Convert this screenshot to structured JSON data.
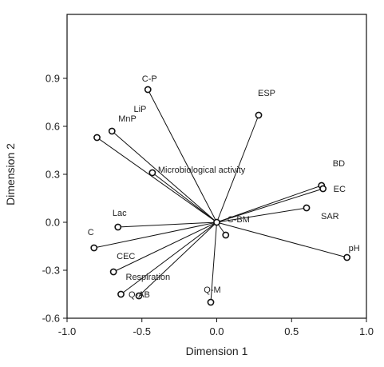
{
  "chart_data": {
    "type": "scatter",
    "title": "",
    "xlabel": "Dimension 1",
    "ylabel": "Dimension 2",
    "xlim": [
      -1.0,
      1.0
    ],
    "ylim": [
      -0.6,
      1.3
    ],
    "xticks": [
      -1.0,
      -0.5,
      0.0,
      0.5,
      1.0
    ],
    "xtick_labels": [
      "-1.0",
      "-0.5",
      "0.0",
      "0.5",
      "1.0"
    ],
    "yticks": [
      -0.6,
      -0.3,
      0.0,
      0.3,
      0.6,
      0.9
    ],
    "ytick_labels": [
      "-0.6",
      "-0.3",
      "0.0",
      "0.3",
      "0.6",
      "0.9"
    ],
    "grid": false,
    "legend": "none",
    "origin": [
      0.0,
      0.0
    ],
    "vectors": [
      {
        "label": "C-P",
        "x": -0.46,
        "y": 0.83,
        "anchor": "above"
      },
      {
        "label": "LiP",
        "x": -0.8,
        "y": 0.53,
        "anchor": "above-right"
      },
      {
        "label": "MnP",
        "x": -0.7,
        "y": 0.57,
        "anchor": "above-right"
      },
      {
        "label": "ESP",
        "x": 0.28,
        "y": 0.67,
        "anchor": "above"
      },
      {
        "label": "Microbiological activity",
        "x": -0.43,
        "y": 0.31,
        "anchor": "right"
      },
      {
        "label": "BD",
        "x": 0.7,
        "y": 0.23,
        "anchor": "above-right"
      },
      {
        "label": "EC",
        "x": 0.71,
        "y": 0.21,
        "anchor": "right"
      },
      {
        "label": "SAR",
        "x": 0.6,
        "y": 0.09,
        "anchor": "right-below"
      },
      {
        "label": "pH",
        "x": 0.87,
        "y": -0.22,
        "anchor": "above-right"
      },
      {
        "label": "Lac",
        "x": -0.66,
        "y": -0.03,
        "anchor": "above"
      },
      {
        "label": "C",
        "x": -0.82,
        "y": -0.16,
        "anchor": "above-left"
      },
      {
        "label": "CEC",
        "x": -0.69,
        "y": -0.31,
        "anchor": "above-right"
      },
      {
        "label": "Respiration",
        "x": -0.64,
        "y": -0.45,
        "anchor": "above-right"
      },
      {
        "label": "Q-AB",
        "x": -0.52,
        "y": -0.46,
        "anchor": "right"
      },
      {
        "label": "C-BM",
        "x": 0.06,
        "y": -0.08,
        "anchor": "above-right"
      },
      {
        "label": "Q-M",
        "x": -0.04,
        "y": -0.5,
        "anchor": "above"
      }
    ]
  }
}
